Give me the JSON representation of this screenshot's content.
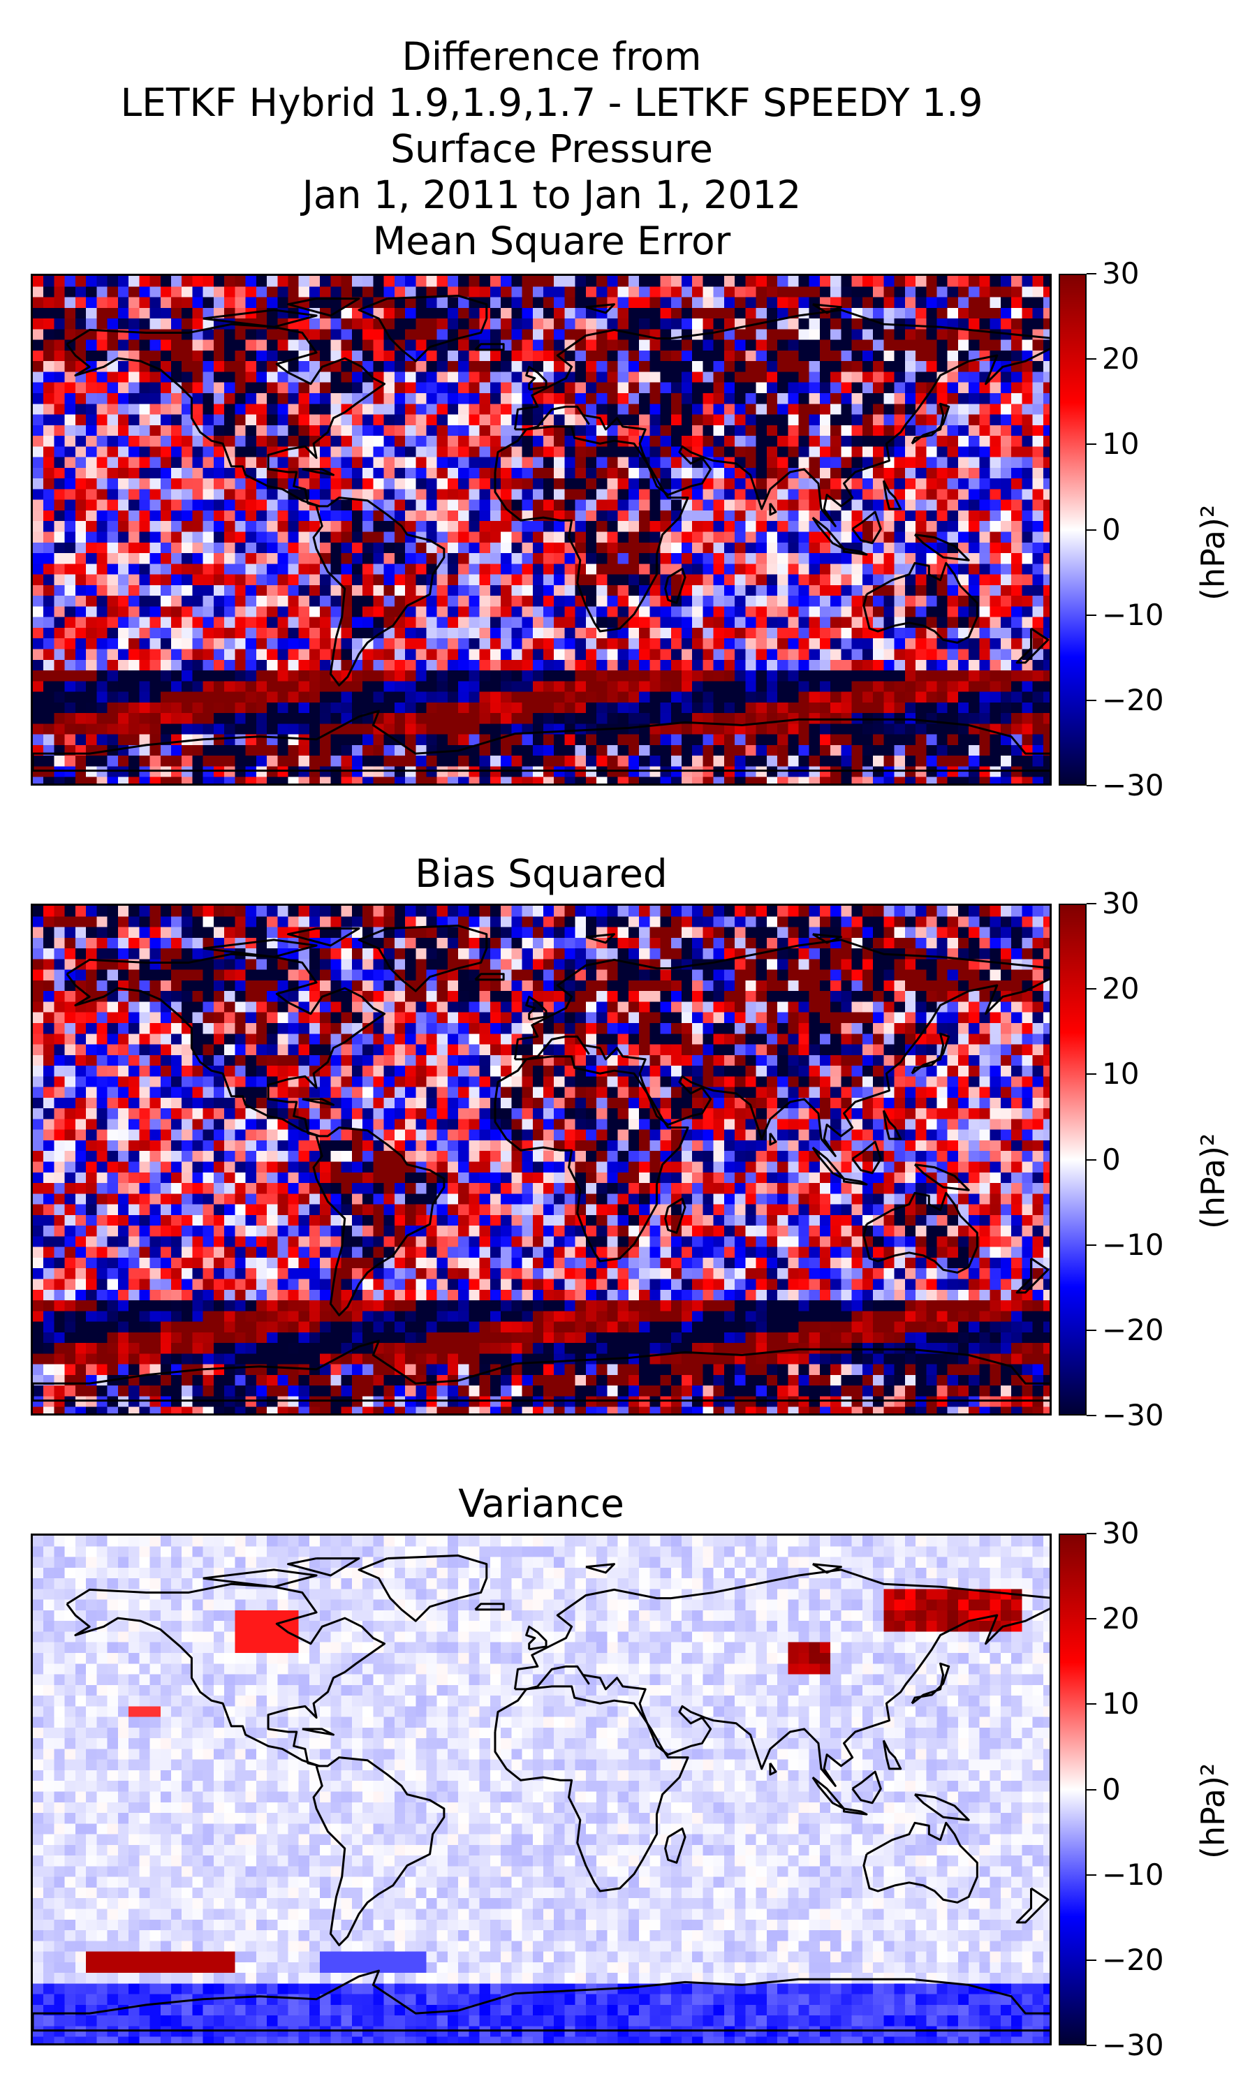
{
  "figure_title": {
    "lines": [
      "Difference from",
      "LETKF Hybrid 1.9,1.9,1.7 - LETKF SPEEDY 1.9",
      "Surface Pressure",
      "Jan 1, 2011 to Jan 1, 2012",
      "Mean Square Error"
    ]
  },
  "colormap": {
    "name": "seismic",
    "colors": [
      "#000033",
      "#0000ff",
      "#ffffff",
      "#ff0000",
      "#800000"
    ]
  },
  "chart_data": [
    {
      "type": "heatmap",
      "title": "Mean Square Error",
      "map": "global coastlines (PlateCarree)",
      "colorbar": {
        "label": "(hPa)²",
        "range": [
          -30,
          30
        ],
        "ticks": [
          "30",
          "20",
          "10",
          "0",
          "−10",
          "−20",
          "−30"
        ]
      },
      "pattern": "strong mixed positive/negative differences",
      "amplitude": 1.0
    },
    {
      "type": "heatmap",
      "title": "Bias Squared",
      "map": "global coastlines (PlateCarree)",
      "colorbar": {
        "label": "(hPa)²",
        "range": [
          -30,
          30
        ],
        "ticks": [
          "30",
          "20",
          "10",
          "0",
          "−10",
          "−20",
          "−30"
        ]
      },
      "pattern": "strong mixed positive/negative differences",
      "amplitude": 1.0
    },
    {
      "type": "heatmap",
      "title": "Variance",
      "map": "global coastlines (PlateCarree)",
      "colorbar": {
        "label": "(hPa)²",
        "range": [
          -30,
          30
        ],
        "ticks": [
          "30",
          "20",
          "10",
          "0",
          "−10",
          "−20",
          "−30"
        ]
      },
      "pattern": "mostly small values, localized positive spots",
      "amplitude": 0.25
    }
  ]
}
